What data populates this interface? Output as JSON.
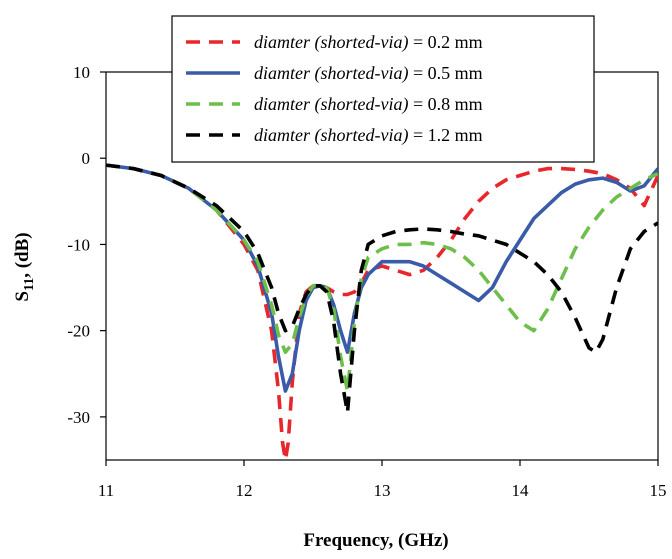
{
  "chart_data": {
    "type": "line",
    "title": "",
    "xlabel": "Frequency, (GHz)",
    "ylabel_main": "S",
    "ylabel_sub": "11",
    "ylabel_tail": ", (dB)",
    "xlim": [
      11,
      15
    ],
    "ylim": [
      -35,
      10
    ],
    "xticks": [
      11,
      12,
      13,
      14,
      15
    ],
    "yticks": [
      -30,
      -20,
      -10,
      0,
      10
    ],
    "grid": false,
    "legend_position": "top-center",
    "series": [
      {
        "name": "diamter (shorted-via)",
        "equals_value": "0.2",
        "unit": "mm",
        "color": "#e8262b",
        "dash": "dashed",
        "x": [
          11.0,
          11.2,
          11.4,
          11.6,
          11.8,
          12.0,
          12.1,
          12.2,
          12.25,
          12.28,
          12.3,
          12.32,
          12.35,
          12.4,
          12.45,
          12.5,
          12.55,
          12.6,
          12.65,
          12.7,
          12.75,
          12.8,
          12.85,
          12.9,
          13.0,
          13.1,
          13.2,
          13.3,
          13.4,
          13.5,
          13.6,
          13.7,
          13.8,
          13.9,
          14.0,
          14.1,
          14.2,
          14.3,
          14.4,
          14.5,
          14.6,
          14.7,
          14.8,
          14.9,
          15.0
        ],
        "y": [
          -0.8,
          -1.2,
          -2.0,
          -3.5,
          -6.0,
          -10.0,
          -13.0,
          -20.0,
          -27.0,
          -33.0,
          -35.0,
          -33.0,
          -26.0,
          -18.0,
          -15.5,
          -14.8,
          -14.8,
          -15.0,
          -15.5,
          -15.8,
          -15.8,
          -15.5,
          -14.5,
          -13.0,
          -12.5,
          -13.0,
          -13.5,
          -13.0,
          -11.5,
          -9.5,
          -7.0,
          -5.0,
          -3.5,
          -2.5,
          -2.0,
          -1.5,
          -1.2,
          -1.2,
          -1.3,
          -1.5,
          -1.8,
          -2.5,
          -3.5,
          -5.5,
          -2.0
        ]
      },
      {
        "name": "diamter (shorted-via)",
        "equals_value": "0.5",
        "unit": "mm",
        "color": "#3a5ba8",
        "dash": "solid",
        "x": [
          11.0,
          11.2,
          11.4,
          11.6,
          11.8,
          12.0,
          12.1,
          12.2,
          12.25,
          12.3,
          12.35,
          12.4,
          12.45,
          12.5,
          12.55,
          12.6,
          12.65,
          12.7,
          12.75,
          12.8,
          12.85,
          12.9,
          13.0,
          13.1,
          13.2,
          13.3,
          13.4,
          13.5,
          13.6,
          13.7,
          13.8,
          13.9,
          14.0,
          14.1,
          14.2,
          14.3,
          14.4,
          14.5,
          14.6,
          14.7,
          14.8,
          14.9,
          15.0
        ],
        "y": [
          -0.8,
          -1.2,
          -2.0,
          -3.5,
          -6.0,
          -9.5,
          -12.5,
          -18.0,
          -23.0,
          -27.0,
          -25.0,
          -20.0,
          -16.5,
          -15.0,
          -14.8,
          -15.0,
          -17.0,
          -20.0,
          -22.5,
          -18.0,
          -15.0,
          -13.5,
          -12.0,
          -12.0,
          -12.0,
          -12.5,
          -13.5,
          -14.5,
          -15.5,
          -16.5,
          -15.0,
          -12.0,
          -9.5,
          -7.0,
          -5.5,
          -4.0,
          -3.0,
          -2.5,
          -2.3,
          -2.8,
          -3.8,
          -3.2,
          -1.2
        ]
      },
      {
        "name": "diamter (shorted-via)",
        "equals_value": "0.8",
        "unit": "mm",
        "color": "#6cbf4a",
        "dash": "dashed",
        "x": [
          11.0,
          11.2,
          11.4,
          11.6,
          11.8,
          12.0,
          12.1,
          12.2,
          12.25,
          12.3,
          12.35,
          12.4,
          12.45,
          12.5,
          12.55,
          12.6,
          12.65,
          12.7,
          12.75,
          12.8,
          12.85,
          12.9,
          13.0,
          13.1,
          13.2,
          13.3,
          13.4,
          13.5,
          13.6,
          13.7,
          13.8,
          13.9,
          14.0,
          14.1,
          14.2,
          14.3,
          14.4,
          14.5,
          14.6,
          14.7,
          14.8,
          14.9,
          15.0
        ],
        "y": [
          -0.8,
          -1.2,
          -2.0,
          -3.5,
          -6.0,
          -9.5,
          -12.0,
          -17.0,
          -20.5,
          -22.5,
          -21.5,
          -18.5,
          -16.0,
          -14.8,
          -14.7,
          -15.0,
          -17.5,
          -23.0,
          -27.0,
          -19.0,
          -14.0,
          -11.5,
          -10.5,
          -10.0,
          -10.0,
          -9.8,
          -10.0,
          -10.5,
          -11.5,
          -13.0,
          -15.0,
          -17.0,
          -19.0,
          -20.0,
          -17.5,
          -14.0,
          -10.5,
          -8.0,
          -6.0,
          -4.5,
          -3.5,
          -2.5,
          -1.8
        ]
      },
      {
        "name": "diamter (shorted-via)",
        "equals_value": "1.2",
        "unit": "mm",
        "color": "#000000",
        "dash": "dashed",
        "x": [
          11.0,
          11.2,
          11.4,
          11.6,
          11.8,
          12.0,
          12.1,
          12.2,
          12.25,
          12.3,
          12.35,
          12.4,
          12.45,
          12.5,
          12.55,
          12.6,
          12.65,
          12.7,
          12.75,
          12.8,
          12.85,
          12.9,
          13.0,
          13.1,
          13.2,
          13.3,
          13.4,
          13.5,
          13.6,
          13.7,
          13.8,
          13.9,
          14.0,
          14.1,
          14.2,
          14.3,
          14.4,
          14.5,
          14.55,
          14.6,
          14.7,
          14.8,
          14.9,
          15.0
        ],
        "y": [
          -0.8,
          -1.2,
          -2.0,
          -3.5,
          -5.5,
          -8.5,
          -11.0,
          -15.0,
          -18.0,
          -20.0,
          -19.5,
          -17.5,
          -15.8,
          -14.8,
          -14.8,
          -15.5,
          -19.0,
          -25.0,
          -29.5,
          -20.0,
          -13.0,
          -10.0,
          -9.0,
          -8.5,
          -8.3,
          -8.2,
          -8.3,
          -8.5,
          -8.8,
          -9.0,
          -9.5,
          -10.0,
          -11.0,
          -12.0,
          -13.5,
          -15.5,
          -18.5,
          -22.0,
          -22.5,
          -21.0,
          -15.0,
          -10.5,
          -8.5,
          -7.5
        ]
      }
    ]
  }
}
